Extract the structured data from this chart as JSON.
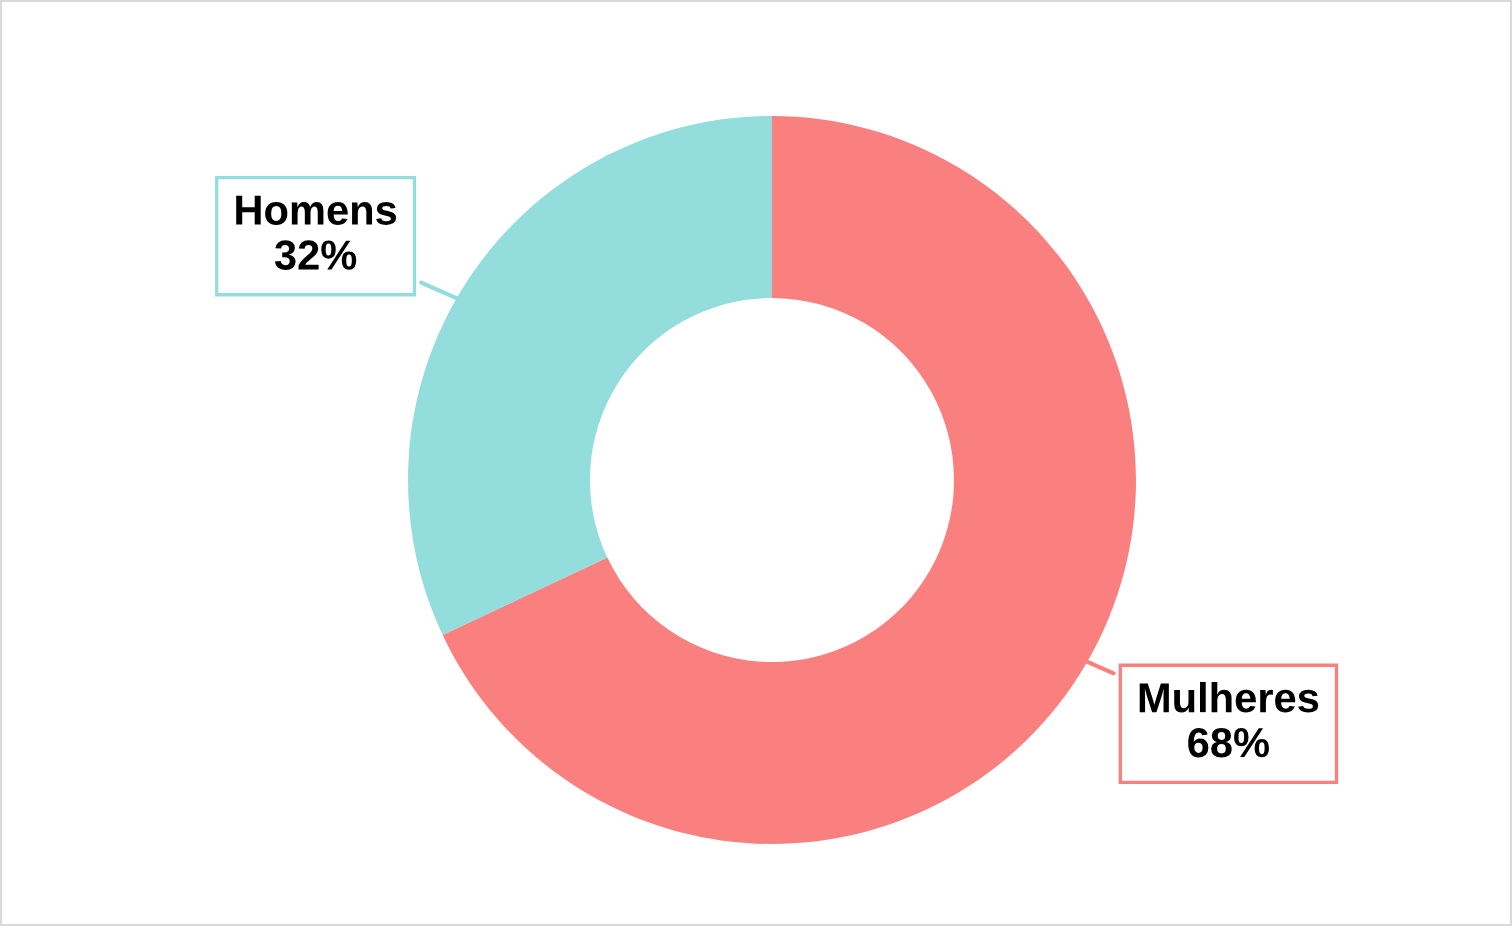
{
  "chart_data": {
    "type": "donut",
    "categories": [
      "Mulheres",
      "Homens"
    ],
    "values": [
      68,
      32
    ],
    "colors": [
      "#fa7f7f",
      "#93dddc"
    ],
    "value_labels": [
      "68%",
      "32%"
    ],
    "legend": false
  }
}
